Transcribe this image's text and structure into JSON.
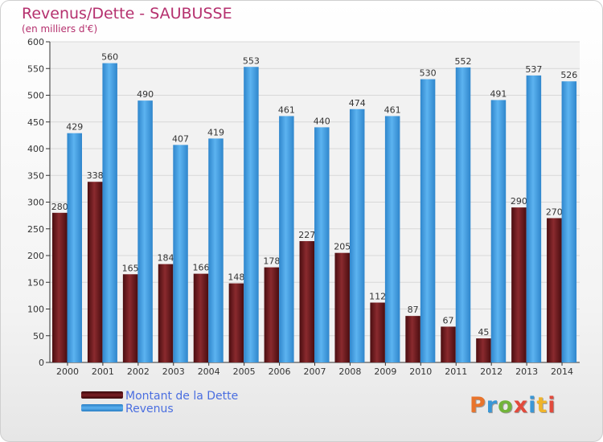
{
  "header": {
    "title": "Revenus/Dette - SAUBUSSE",
    "subtitle": "(en milliers d'€)"
  },
  "logo": {
    "text": "Proxiti",
    "colors": [
      "#e8742c",
      "#3a97d6",
      "#72b43a",
      "#e24a3c",
      "#3a97d6",
      "#f0b42a",
      "#e24a3c"
    ]
  },
  "chart_data": {
    "type": "bar",
    "categories": [
      "2000",
      "2001",
      "2002",
      "2003",
      "2004",
      "2005",
      "2006",
      "2007",
      "2008",
      "2009",
      "2010",
      "2011",
      "2012",
      "2013",
      "2014"
    ],
    "series": [
      {
        "name": "Montant de la Dette",
        "color": "#7a1f24",
        "values": [
          280,
          338,
          165,
          184,
          166,
          148,
          178,
          227,
          205,
          112,
          87,
          67,
          45,
          290,
          270
        ]
      },
      {
        "name": "Revenus",
        "color": "#4da3e8",
        "values": [
          429,
          560,
          490,
          407,
          419,
          553,
          461,
          440,
          474,
          461,
          530,
          552,
          491,
          537,
          526
        ]
      }
    ],
    "ylim": [
      0,
      600
    ],
    "yticks": [
      0,
      50,
      100,
      150,
      200,
      250,
      300,
      350,
      400,
      450,
      500,
      550,
      600
    ],
    "grid": true,
    "legend": "bottom-left"
  }
}
